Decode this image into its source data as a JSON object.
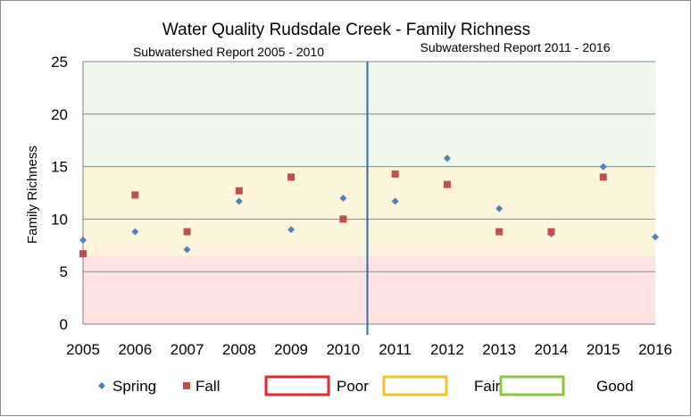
{
  "chart_data": {
    "type": "scatter",
    "title": "Water Quality Rudsdale Creek - Family Richness",
    "ylabel": "Family Richness",
    "xlabel": "",
    "categories": [
      "2005",
      "2006",
      "2007",
      "2008",
      "2009",
      "2010",
      "2011",
      "2012",
      "2013",
      "2014",
      "2015",
      "2016"
    ],
    "ylim": [
      0,
      25
    ],
    "yticks": [
      "0",
      "5",
      "10",
      "15",
      "20",
      "25"
    ],
    "grid": true,
    "series": [
      {
        "name": "Spring",
        "color": "#4f81bd",
        "marker": "diamond",
        "values": [
          8,
          8.8,
          7.1,
          11.7,
          9,
          12,
          11.7,
          15.8,
          11,
          8.6,
          15,
          8.3
        ]
      },
      {
        "name": "Fall",
        "color": "#c0504d",
        "marker": "square",
        "values": [
          6.7,
          12.3,
          8.8,
          12.7,
          14,
          10,
          14.3,
          13.3,
          8.8,
          8.8,
          14,
          null
        ]
      }
    ],
    "bands": [
      {
        "name": "Poor",
        "from": 0,
        "to": 6.5,
        "fill": "#fde2e2",
        "border": "#e8282b"
      },
      {
        "name": "Fair",
        "from": 6.5,
        "to": 15,
        "fill": "#fdf4dc",
        "border": "#f5c02a"
      },
      {
        "name": "Good",
        "from": 15,
        "to": 25,
        "fill": "#eef7ea",
        "border": "#8cc63f"
      }
    ],
    "divider_after": "2010",
    "divider_color": "#2e6db5",
    "annotations": [
      "Subwatershed  Report 2005 - 2010",
      "Subwatershed  Report 2011 - 2016"
    ],
    "legend_position": "bottom"
  }
}
